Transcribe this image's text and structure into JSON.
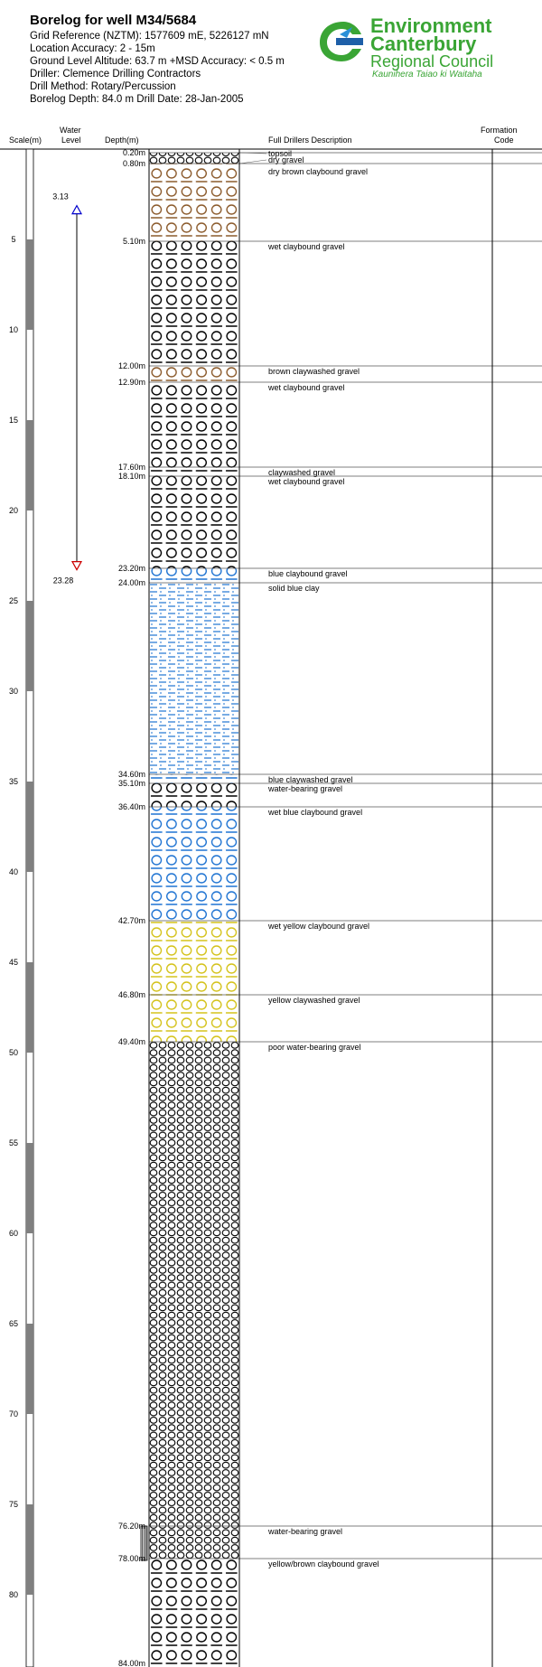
{
  "header": {
    "title": "Borelog for well M34/5684",
    "grid_reference": "Grid Reference (NZTM):  1577609 mE, 5226127 mN",
    "location_accuracy": "Location Accuracy:  2 - 15m",
    "ground_level": "Ground Level Altitude:  63.7 m +MSD Accuracy:  < 0.5 m",
    "driller": "Driller:  Clemence Drilling Contractors",
    "drill_method": "Drill Method:  Rotary/Percussion",
    "borelog_depth": "Borelog Depth:  84.0 m     Drill Date:  28-Jan-2005"
  },
  "logo": {
    "line1": "Environment",
    "line2": "Canterbury",
    "line3": "Regional Council",
    "line4": "Kaunihera Taiao ki Waitaha"
  },
  "columns": {
    "scale": "Scale(m)",
    "water_level_1": "Water",
    "water_level_2": "Level",
    "depth": "Depth(m)",
    "description": "Full Drillers Description",
    "formation_1": "Formation",
    "formation_2": "Code"
  },
  "scale_ticks": [
    "5",
    "10",
    "15",
    "20",
    "25",
    "30",
    "35",
    "40",
    "45",
    "50",
    "55",
    "60",
    "65",
    "70",
    "75",
    "80"
  ],
  "water_level": {
    "top": "3.13",
    "bottom": "23.28",
    "top_value": 3.13,
    "bottom_value": 23.28
  },
  "total_depth": 84.0,
  "final_depth_label": "84.00m",
  "layers": [
    {
      "top": 0.0,
      "bottom": 0.2,
      "label": "0.20m",
      "desc": "topsoil",
      "pattern": "none",
      "color": "#000000"
    },
    {
      "top": 0.2,
      "bottom": 0.8,
      "label": "0.80m",
      "desc": "dry gravel",
      "pattern": "gravel",
      "color": "#000000"
    },
    {
      "top": 0.8,
      "bottom": 5.1,
      "label": "5.10m",
      "desc": "dry brown claybound gravel",
      "pattern": "claybound",
      "color": "#8b5a2b"
    },
    {
      "top": 5.1,
      "bottom": 12.0,
      "label": "12.00m",
      "desc": "wet claybound gravel",
      "pattern": "claybound",
      "color": "#000000"
    },
    {
      "top": 12.0,
      "bottom": 12.9,
      "label": "12.90m",
      "desc": "brown claywashed gravel",
      "pattern": "claybound",
      "color": "#8b5a2b"
    },
    {
      "top": 12.9,
      "bottom": 17.6,
      "label": "17.60m",
      "desc": "wet claybound gravel",
      "pattern": "claybound",
      "color": "#000000"
    },
    {
      "top": 17.6,
      "bottom": 18.1,
      "label": "18.10m",
      "desc": "claywashed gravel",
      "pattern": "claybound",
      "color": "#000000"
    },
    {
      "top": 18.1,
      "bottom": 23.2,
      "label": "23.20m",
      "desc": "wet claybound gravel",
      "pattern": "claybound",
      "color": "#000000"
    },
    {
      "top": 23.2,
      "bottom": 24.0,
      "label": "24.00m",
      "desc": "blue claybound gravel",
      "pattern": "claybound",
      "color": "#1e73d2"
    },
    {
      "top": 24.0,
      "bottom": 34.6,
      "label": "34.60m",
      "desc": "solid blue clay",
      "pattern": "clay",
      "color": "#1e73d2"
    },
    {
      "top": 34.6,
      "bottom": 35.1,
      "label": "35.10m",
      "desc": "blue claywashed gravel",
      "pattern": "claybound",
      "color": "#1e73d2"
    },
    {
      "top": 35.1,
      "bottom": 36.4,
      "label": "36.40m",
      "desc": "water-bearing gravel",
      "pattern": "claybound",
      "color": "#000000"
    },
    {
      "top": 36.4,
      "bottom": 42.7,
      "label": "42.70m",
      "desc": "wet blue claybound gravel",
      "pattern": "claybound",
      "color": "#1e73d2"
    },
    {
      "top": 42.7,
      "bottom": 46.8,
      "label": "46.80m",
      "desc": "wet yellow claybound gravel",
      "pattern": "claybound",
      "color": "#d4c21a"
    },
    {
      "top": 46.8,
      "bottom": 49.4,
      "label": "49.40m",
      "desc": "yellow claywashed gravel",
      "pattern": "claybound",
      "color": "#d4c21a"
    },
    {
      "top": 49.4,
      "bottom": 76.2,
      "label": "76.20m",
      "desc": "poor water-bearing gravel",
      "pattern": "gravel",
      "color": "#000000"
    },
    {
      "top": 76.2,
      "bottom": 78.0,
      "label": "78.00m",
      "desc": "water-bearing gravel",
      "pattern": "gravel",
      "color": "#000000"
    },
    {
      "top": 78.0,
      "bottom": 84.0,
      "label": "",
      "desc": "yellow/brown claybound gravel",
      "pattern": "claybound",
      "color": "#000000"
    }
  ],
  "colors": {
    "water_top_marker": "#0000cc",
    "water_bottom_marker": "#cc0000",
    "logo_green": "#3aa535"
  }
}
